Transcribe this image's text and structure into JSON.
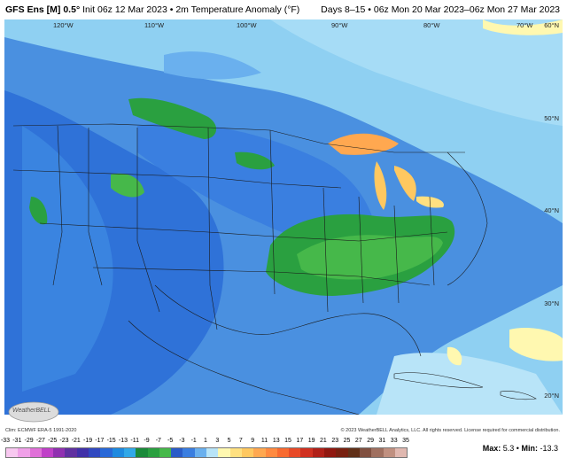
{
  "header": {
    "model": "GFS Ens [M] 0.5",
    "degree_mark": "°",
    "init": "Init 06z 12 Mar 2023",
    "sep": "•",
    "field": "2m Temperature Anomaly (°F)",
    "valid": "Days 8–15 • 06z Mon 20 Mar 2023–06z Mon 27 Mar 2023"
  },
  "lon_labels": [
    "120°W",
    "110°W",
    "100°W",
    "90°W",
    "80°W",
    "70°W"
  ],
  "lat_labels": [
    "60°N",
    "50°N",
    "40°N",
    "30°N",
    "20°N"
  ],
  "credits": {
    "clim": "Clim: ECMWF ERA-5 1991-2020",
    "copyright": "© 2023 WeatherBELL Analytics, LLC. All rights reserved. License required for commercial distribution."
  },
  "logo": {
    "text": "WeatherBELL"
  },
  "scale": {
    "ticks": [
      "-33",
      "-31",
      "-29",
      "-27",
      "-25",
      "-23",
      "-21",
      "-19",
      "-17",
      "-15",
      "-13",
      "-11",
      "-9",
      "-7",
      "-5",
      "-3",
      "-1",
      "1",
      "3",
      "5",
      "7",
      "9",
      "11",
      "13",
      "15",
      "17",
      "19",
      "21",
      "23",
      "25",
      "27",
      "29",
      "31",
      "33",
      "35"
    ],
    "colors": [
      "#f8c8f0",
      "#f0a0e8",
      "#e070d8",
      "#c040c8",
      "#9030b0",
      "#6030a0",
      "#4030a8",
      "#3048c0",
      "#2868d8",
      "#1e8ae0",
      "#30a8e8",
      "#1a8a3a",
      "#2aa040",
      "#46b84a",
      "#2a5cc8",
      "#3a7ee0",
      "#6ab0ee",
      "#b8e4f8",
      "#fff8b0",
      "#ffe080",
      "#ffc860",
      "#ffa850",
      "#ff8a40",
      "#f86a30",
      "#e84a28",
      "#d03020",
      "#b02018",
      "#901810",
      "#782010",
      "#603018",
      "#805040",
      "#a07060",
      "#c09080",
      "#e0b8b0"
    ],
    "max_label": "Max:",
    "max_value": "5.3",
    "min_label": "Min:",
    "min_value": "-13.3",
    "sep": "•"
  }
}
